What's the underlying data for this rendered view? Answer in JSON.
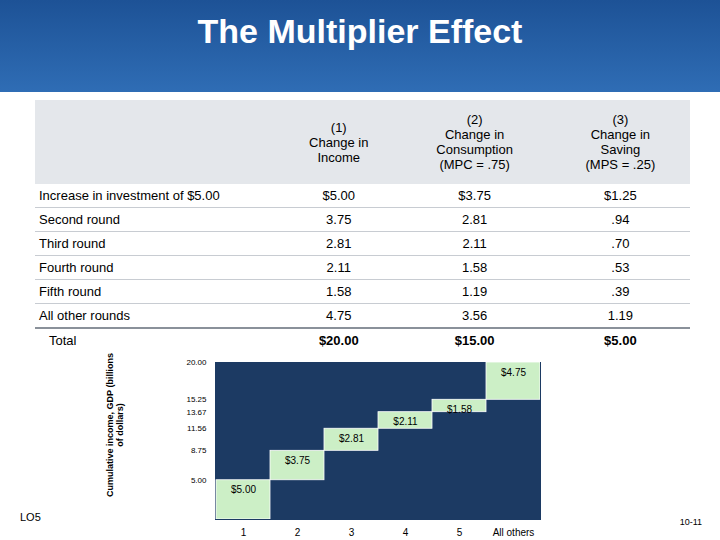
{
  "title": "The Multiplier Effect",
  "table": {
    "header": [
      [
        "(1)",
        "Change in",
        "Income"
      ],
      [
        "(2)",
        "Change in",
        "Consumption",
        "(MPC = .75)"
      ],
      [
        "(3)",
        "Change in",
        "Saving",
        "(MPS = .25)"
      ]
    ],
    "rows": [
      [
        "Increase in investment of $5.00",
        "$5.00",
        "$3.75",
        "$1.25"
      ],
      [
        "Second round",
        "3.75",
        "2.81",
        ".94"
      ],
      [
        "Third round",
        "2.81",
        "2.11",
        ".70"
      ],
      [
        "Fourth round",
        "2.11",
        "1.58",
        ".53"
      ],
      [
        "Fifth round",
        "1.58",
        "1.19",
        ".39"
      ],
      [
        "All other rounds",
        "4.75",
        "3.56",
        "1.19"
      ]
    ],
    "total": [
      "Total",
      "$20.00",
      "$15.00",
      "$5.00"
    ]
  },
  "chart_data": {
    "type": "waterfall",
    "y_label": "Cumulative income, GDP (billions of dollars)",
    "categories": [
      "1",
      "2",
      "3",
      "4",
      "5",
      "All others"
    ],
    "values": [
      5,
      3.75,
      2.81,
      2.11,
      1.58,
      4.75
    ],
    "value_labels": [
      "$5.00",
      "$3.75",
      "$2.81",
      "$2.11",
      "$1.58",
      "$4.75"
    ],
    "data_labels": true,
    "color": "#ccefc6",
    "ylim": [
      0,
      20
    ],
    "yticks": [
      {
        "value": 5,
        "label": "5.00"
      },
      {
        "value": 8.75,
        "label": "8.75"
      },
      {
        "value": 11.56,
        "label": "11.56"
      },
      {
        "value": 13.67,
        "label": "13.67"
      },
      {
        "value": 15.25,
        "label": "15.25"
      },
      {
        "value": 20,
        "label": "20.00"
      }
    ]
  },
  "footer": {
    "left": "LO5",
    "right": "10-11"
  }
}
